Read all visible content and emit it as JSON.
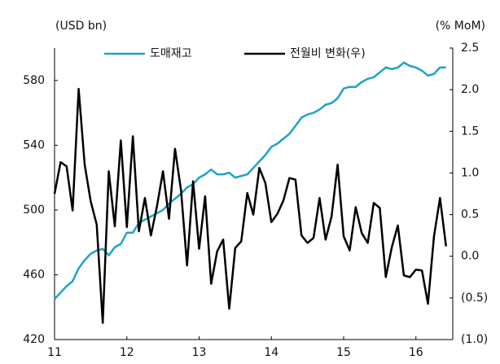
{
  "chart_data": {
    "type": "line",
    "y_axis_label": "(USD bn)",
    "y2_axis_label": "(% MoM)",
    "categories": [
      "11",
      null,
      null,
      null,
      null,
      null,
      null,
      null,
      null,
      null,
      null,
      null,
      "12",
      null,
      null,
      null,
      null,
      null,
      null,
      null,
      null,
      null,
      null,
      null,
      "13",
      null,
      null,
      null,
      null,
      null,
      null,
      null,
      null,
      null,
      null,
      null,
      "14",
      null,
      null,
      null,
      null,
      null,
      null,
      null,
      null,
      null,
      null,
      null,
      "15",
      null,
      null,
      null,
      null,
      null,
      null,
      null,
      null,
      null,
      null,
      null,
      "16",
      null,
      null,
      null,
      null,
      null
    ],
    "series": [
      {
        "name": "도매재고",
        "color": "#1fa3c9",
        "values": [
          445,
          449,
          453,
          456,
          464,
          469,
          473,
          475,
          476,
          472,
          477,
          479,
          486,
          486,
          492,
          494,
          496,
          498,
          500,
          504,
          507,
          510,
          514,
          516,
          520,
          522,
          525,
          522,
          522,
          523,
          520,
          521,
          522,
          526,
          530,
          534,
          539,
          541,
          544,
          547,
          552,
          557,
          559,
          560,
          562,
          565,
          566,
          569,
          575,
          576,
          576,
          579,
          581,
          582,
          585,
          588,
          587,
          588,
          591,
          589,
          588,
          586,
          583,
          584,
          588,
          588
        ]
      },
      {
        "name": "전월비 변화(우)",
        "color": "#000000",
        "axis": "y2",
        "values": [
          0.75,
          1.13,
          1.08,
          0.55,
          2.01,
          1.1,
          0.66,
          0.38,
          -0.8,
          1.02,
          0.36,
          1.39,
          0.35,
          1.44,
          0.3,
          0.7,
          0.25,
          0.6,
          1.02,
          0.45,
          1.29,
          0.79,
          -0.11,
          0.9,
          0.09,
          0.72,
          -0.33,
          0.06,
          0.2,
          -0.63,
          0.1,
          0.18,
          0.76,
          0.5,
          1.06,
          0.88,
          0.41,
          0.51,
          0.67,
          0.94,
          0.92,
          0.25,
          0.16,
          0.22,
          0.7,
          0.2,
          0.48,
          1.1,
          0.24,
          0.07,
          0.59,
          0.28,
          0.16,
          0.64,
          0.58,
          -0.25,
          0.11,
          0.37,
          -0.23,
          -0.25,
          -0.16,
          -0.17,
          -0.57,
          0.24,
          0.7,
          0.12
        ]
      }
    ],
    "ylim": [
      420,
      600
    ],
    "yticks": [
      420,
      460,
      500,
      540,
      580
    ],
    "y2lim": [
      -1.0,
      2.5
    ],
    "y2ticks": [
      {
        "value": -1.0,
        "label": "(1.0)"
      },
      {
        "value": -0.5,
        "label": "(0.5)"
      },
      {
        "value": 0,
        "label": "0.0"
      },
      0.5,
      {
        "value": 1.0,
        "label": "1.0"
      },
      1.5,
      {
        "value": 2.0,
        "label": "2.0"
      },
      2.5
    ],
    "legend": "top"
  }
}
